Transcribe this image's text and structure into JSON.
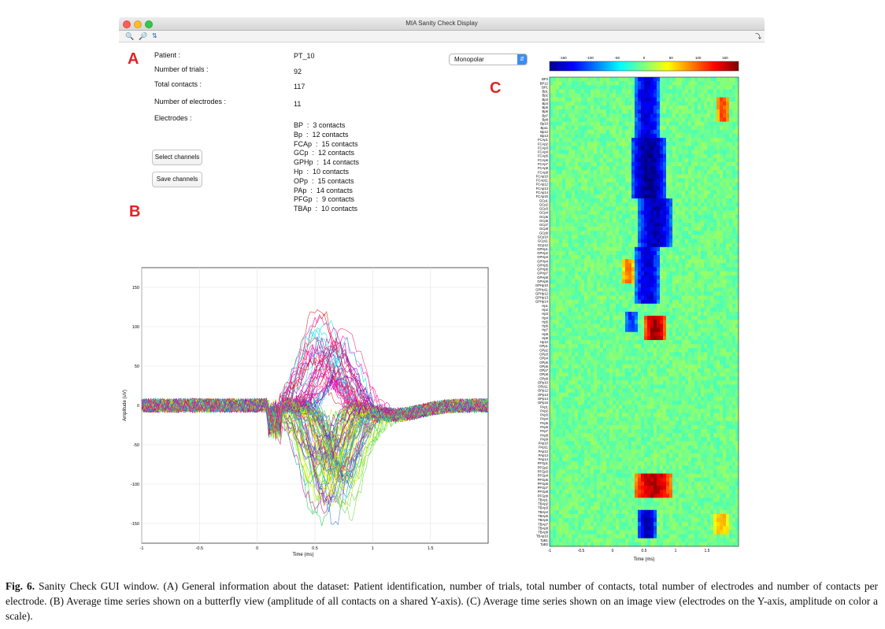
{
  "window": {
    "title": "MIA Sanity Check Display"
  },
  "panel_letters": {
    "a": "A",
    "b": "B",
    "c": "C"
  },
  "info": {
    "patient_label": "Patient :",
    "patient_value": "PT_10",
    "trials_label": "Number of trials :",
    "trials_value": "92",
    "contacts_label": "Total contacts :",
    "contacts_value": "117",
    "electrodes_count_label": "Number of electrodes :",
    "electrodes_count_value": "11",
    "electrodes_label": "Electrodes :"
  },
  "electrodes": [
    "BP  :  3 contacts",
    "Bp  :  12 contacts",
    "FCAp  :  15 contacts",
    "GCp  :  12 contacts",
    "GPHp  :  14 contacts",
    "Hp  :  10 contacts",
    "OPp  :  15 contacts",
    "PAp  :  14 contacts",
    "PFGp  :  9 contacts",
    "TBAp  :  10 contacts"
  ],
  "buttons": {
    "select_channels": "Select channels",
    "save_channels": "Save channels"
  },
  "montage_select": {
    "value": "Monopolar"
  },
  "colors": {
    "letter_red": "#e02323",
    "accent_blue": "#3b8cf3"
  },
  "chart_data": [
    {
      "type": "line",
      "title": "",
      "xlabel": "Time (ms)",
      "ylabel": "Amplitude (uV)",
      "xlim": [
        -1,
        2
      ],
      "ylim": [
        -175,
        175
      ],
      "xticks": [
        "-1",
        "-0.5",
        "0",
        "0.5",
        "1",
        "1.5"
      ],
      "yticks": [
        "150",
        "100",
        "50",
        "0",
        "-50",
        "-100",
        "-150"
      ],
      "grid": true,
      "series_note_values": {
        "peaks_positive_approx": [
          130,
          120,
          100,
          80,
          60,
          40
        ],
        "peaks_negative_approx": [
          -170,
          -150,
          -130,
          -110,
          -90,
          -70
        ]
      }
    },
    {
      "type": "heatmap",
      "xlabel": "Time (ms)",
      "xticks": [
        "-1",
        "-0.5",
        "0",
        "0.5",
        "1",
        "1.5"
      ],
      "colorbar_ticks": [
        "-150",
        "-100",
        "-50",
        "0",
        "50",
        "100",
        "150"
      ],
      "clim": [
        -175,
        175
      ],
      "row_labels": [
        "BP3",
        "BP12",
        "BP1",
        "Bp1",
        "Bp2",
        "Bp3",
        "Bp4",
        "Bp5",
        "Bp6",
        "Bp7",
        "Bp8",
        "Bp10",
        "Bp11",
        "Bp12",
        "Bp13",
        "FCAp1",
        "FCAp2",
        "FCAp3",
        "FCAp4",
        "FCAp5",
        "FCAp6",
        "FCAp7",
        "FCAp8",
        "FCAp9",
        "FCAp10",
        "FCAp11",
        "FCAp12",
        "FCAp13",
        "FCAp14",
        "FCAp15",
        "GCp1",
        "GCp2",
        "GCp3",
        "GCp4",
        "GCp5",
        "GCp6",
        "GCp7",
        "GCp8",
        "GCp9",
        "GCp10",
        "GCp11",
        "GCp12",
        "GPHp1",
        "GPHp2",
        "GPHp3",
        "GPHp4",
        "GPHp5",
        "GPHp6",
        "GPHp7",
        "GPHp8",
        "GPHp9",
        "GPHp10",
        "GPHp11",
        "GPHp12",
        "GPHp13",
        "GPHp14",
        "Hp1",
        "Hp2",
        "Hp3",
        "Hp4",
        "Hp5",
        "Hp6",
        "Hp7",
        "Hp8",
        "Hp9",
        "Hp10",
        "OPp1",
        "OPp2",
        "OPp3",
        "OPp4",
        "OPp5",
        "OPp6",
        "OPp7",
        "OPp8",
        "OPp9",
        "OPp10",
        "OPp11",
        "OPp12",
        "OPp13",
        "OPp14",
        "OPp15",
        "PAp1",
        "PAp2",
        "PAp3",
        "PAp4",
        "PAp5",
        "PAp6",
        "PAp7",
        "PAp8",
        "PAp9",
        "PAp10",
        "PAp11",
        "PAp12",
        "PAp13",
        "PAp14",
        "PFGp1",
        "PFGp2",
        "PFGp3",
        "PFGp4",
        "PFGp5",
        "PFGp6",
        "PFGp7",
        "PFGp8",
        "PFGp9",
        "TBAp1",
        "TBAp2",
        "TBAp3",
        "TBAp4",
        "TBAp5",
        "TBAp6",
        "TBAp7",
        "TBAp8",
        "TBAp9",
        "TBAp10",
        "TpB1",
        "TpB2"
      ],
      "blobs": [
        {
          "rows": [
            0,
            14
          ],
          "t": [
            0.35,
            0.75
          ],
          "value": -140
        },
        {
          "rows": [
            15,
            29
          ],
          "t": [
            0.3,
            0.85
          ],
          "value": -165
        },
        {
          "rows": [
            30,
            41
          ],
          "t": [
            0.4,
            0.95
          ],
          "value": -150
        },
        {
          "rows": [
            42,
            55
          ],
          "t": [
            0.35,
            0.75
          ],
          "value": -140
        },
        {
          "rows": [
            45,
            50
          ],
          "t": [
            0.15,
            0.35
          ],
          "value": 90
        },
        {
          "rows": [
            59,
            64
          ],
          "t": [
            0.5,
            0.85
          ],
          "value": 170
        },
        {
          "rows": [
            58,
            62
          ],
          "t": [
            0.2,
            0.4
          ],
          "value": -110
        },
        {
          "rows": [
            98,
            103
          ],
          "t": [
            0.35,
            0.95
          ],
          "value": 160
        },
        {
          "rows": [
            107,
            113
          ],
          "t": [
            0.4,
            0.7
          ],
          "value": -150
        },
        {
          "rows": [
            5,
            10
          ],
          "t": [
            1.65,
            1.85
          ],
          "value": 110
        },
        {
          "rows": [
            108,
            112
          ],
          "t": [
            1.6,
            1.85
          ],
          "value": 70
        }
      ]
    }
  ],
  "caption": {
    "fig_label": "Fig. 6.",
    "text": "Sanity Check GUI window. (A) General information about the dataset: Patient identification, number of trials, total number of contacts, total number of electrodes and number of contacts per electrode. (B) Average time series shown on a butterfly view (amplitude of all contacts on a shared Y-axis). (C) Average time series shown on an image view (electrodes on the Y-axis, amplitude on color a scale)."
  }
}
